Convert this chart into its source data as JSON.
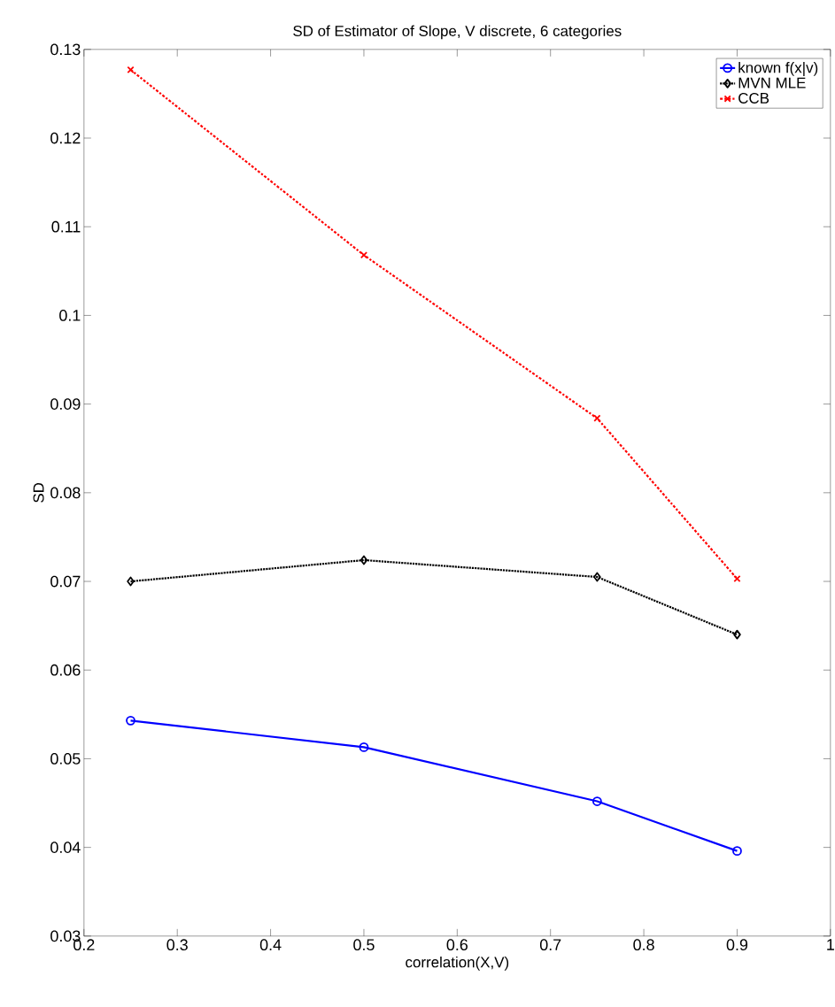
{
  "chart_data": {
    "type": "line",
    "title": "SD of Estimator of Slope, V discrete, 6 categories",
    "xlabel": "correlation(X,V)",
    "ylabel": "SD",
    "x": [
      0.25,
      0.5,
      0.75,
      0.9
    ],
    "series": [
      {
        "name": "known f(x|v)",
        "color": "#0000ff",
        "marker": "circle",
        "line_style": "solid",
        "values": [
          0.0543,
          0.0513,
          0.0452,
          0.0396
        ]
      },
      {
        "name": "MVN MLE",
        "color": "#000000",
        "marker": "diamond",
        "line_style": "dotted",
        "values": [
          0.07,
          0.0724,
          0.0705,
          0.064
        ]
      },
      {
        "name": "CCB",
        "color": "#ff0000",
        "marker": "cross",
        "line_style": "dashed",
        "values": [
          0.1277,
          0.1068,
          0.0884,
          0.0703
        ]
      }
    ],
    "xlim": [
      0.2,
      1
    ],
    "xticks": [
      0.2,
      0.3,
      0.4,
      0.5,
      0.6,
      0.7,
      0.8,
      0.9,
      1
    ],
    "ylim": [
      0.03,
      0.13
    ],
    "yticks": [
      0.03,
      0.04,
      0.05,
      0.06,
      0.07,
      0.08,
      0.09,
      0.1,
      0.11,
      0.12,
      0.13
    ],
    "grid": false,
    "legend": "top right"
  }
}
